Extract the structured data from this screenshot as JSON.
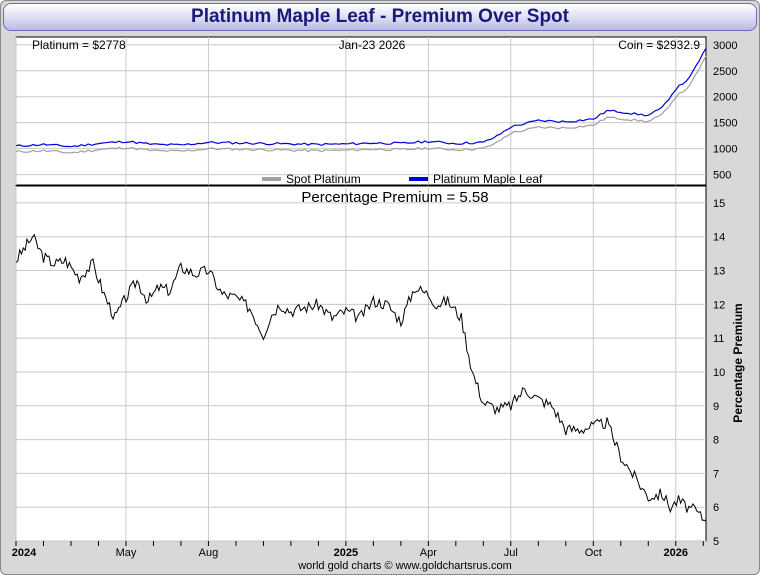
{
  "title": "Platinum Maple Leaf - Premium Over Spot",
  "top_panel": {
    "spot_label": "Platinum = $2778",
    "date_label": "Jan-23  2026",
    "coin_label": "Coin = $2932.9",
    "legend_spot": "Spot Platinum",
    "legend_coin": "Platinum Maple Leaf"
  },
  "bottom_panel": {
    "premium_label": "Percentage Premium = 5.58",
    "ylabel": "Percentage Premium"
  },
  "footer": "world gold charts © www.goldchartsrus.com",
  "colors": {
    "spot_line": "#a0a0a0",
    "coin_line": "#0000dd",
    "premium_line": "#000000",
    "grid": "#c8c8c8",
    "title_text": "#1a1a7a"
  },
  "chart_data": [
    {
      "type": "line",
      "title": "Platinum Maple Leaf vs Spot Platinum",
      "x_ticks": [
        "2024",
        "May",
        "Aug",
        "2025",
        "Apr",
        "Jul",
        "Oct",
        "2026"
      ],
      "y_ticks": [
        "500",
        "1000",
        "1500",
        "2000",
        "2500",
        "3000"
      ],
      "ylim": [
        300,
        3150
      ],
      "x_range_months": [
        0,
        25.1
      ],
      "series": [
        {
          "name": "Spot Platinum",
          "x": [
            0,
            1,
            2,
            3,
            4,
            5,
            6,
            7,
            8,
            9,
            10,
            11,
            12,
            13,
            14,
            15,
            16,
            17,
            17.5,
            18,
            19,
            20,
            21,
            21.5,
            22,
            22.5,
            23,
            23.5,
            24,
            24.5,
            25.1
          ],
          "values": [
            940,
            960,
            920,
            980,
            1020,
            960,
            950,
            1000,
            990,
            980,
            970,
            960,
            970,
            990,
            980,
            1010,
            980,
            1000,
            1120,
            1300,
            1410,
            1400,
            1450,
            1600,
            1580,
            1550,
            1520,
            1650,
            2000,
            2200,
            2778
          ]
        },
        {
          "name": "Platinum Maple Leaf",
          "x": [
            0,
            1,
            2,
            3,
            4,
            5,
            6,
            7,
            8,
            9,
            10,
            11,
            12,
            13,
            14,
            15,
            16,
            17,
            17.5,
            18,
            19,
            20,
            21,
            21.5,
            22,
            22.5,
            23,
            23.5,
            24,
            24.5,
            25.1
          ],
          "values": [
            1050,
            1080,
            1040,
            1100,
            1140,
            1080,
            1070,
            1120,
            1110,
            1100,
            1090,
            1080,
            1090,
            1110,
            1100,
            1140,
            1100,
            1120,
            1240,
            1420,
            1540,
            1520,
            1570,
            1730,
            1710,
            1670,
            1640,
            1780,
            2150,
            2360,
            2932.9
          ]
        }
      ]
    },
    {
      "type": "line",
      "title": "Percentage Premium = 5.58",
      "ylabel": "Percentage Premium",
      "x_ticks": [
        "2024",
        "May",
        "Aug",
        "2025",
        "Apr",
        "Jul",
        "Oct",
        "2026"
      ],
      "y_ticks": [
        "5",
        "6",
        "7",
        "8",
        "9",
        "10",
        "11",
        "12",
        "13",
        "14",
        "15"
      ],
      "ylim": [
        5,
        15.5
      ],
      "x_range_months": [
        0,
        25.1
      ],
      "series": [
        {
          "name": "Percentage Premium",
          "x": [
            0,
            0.6,
            1.0,
            1.4,
            1.8,
            2.3,
            2.8,
            3.2,
            3.6,
            4.0,
            4.4,
            4.8,
            5.2,
            5.6,
            6.0,
            6.5,
            7.0,
            7.5,
            8.0,
            8.5,
            9.0,
            9.3,
            9.6,
            10.0,
            10.5,
            11.0,
            11.5,
            12.0,
            12.5,
            13.0,
            13.5,
            14.0,
            14.5,
            15.0,
            15.3,
            15.7,
            16.2,
            16.6,
            17.0,
            17.5,
            18.0,
            18.5,
            19.0,
            19.5,
            20.0,
            20.5,
            21.0,
            21.5,
            22.0,
            22.5,
            23.0,
            23.5,
            23.8,
            24.1,
            24.4,
            24.7,
            25.1
          ],
          "values": [
            13.3,
            14.0,
            13.4,
            13.2,
            13.3,
            12.8,
            13.2,
            12.3,
            11.6,
            12.2,
            12.7,
            12.1,
            12.5,
            12.4,
            13.1,
            12.9,
            13.0,
            12.3,
            12.2,
            11.9,
            11.1,
            11.7,
            12.0,
            11.8,
            11.9,
            12.0,
            11.6,
            11.8,
            11.6,
            12.1,
            12.0,
            11.5,
            12.5,
            12.3,
            12.0,
            12.1,
            11.6,
            10.0,
            9.1,
            8.9,
            9.0,
            9.5,
            9.2,
            9.0,
            8.3,
            8.3,
            8.4,
            8.5,
            7.5,
            6.9,
            6.3,
            6.4,
            6.0,
            6.2,
            6.0,
            5.9,
            5.58
          ]
        }
      ]
    }
  ]
}
